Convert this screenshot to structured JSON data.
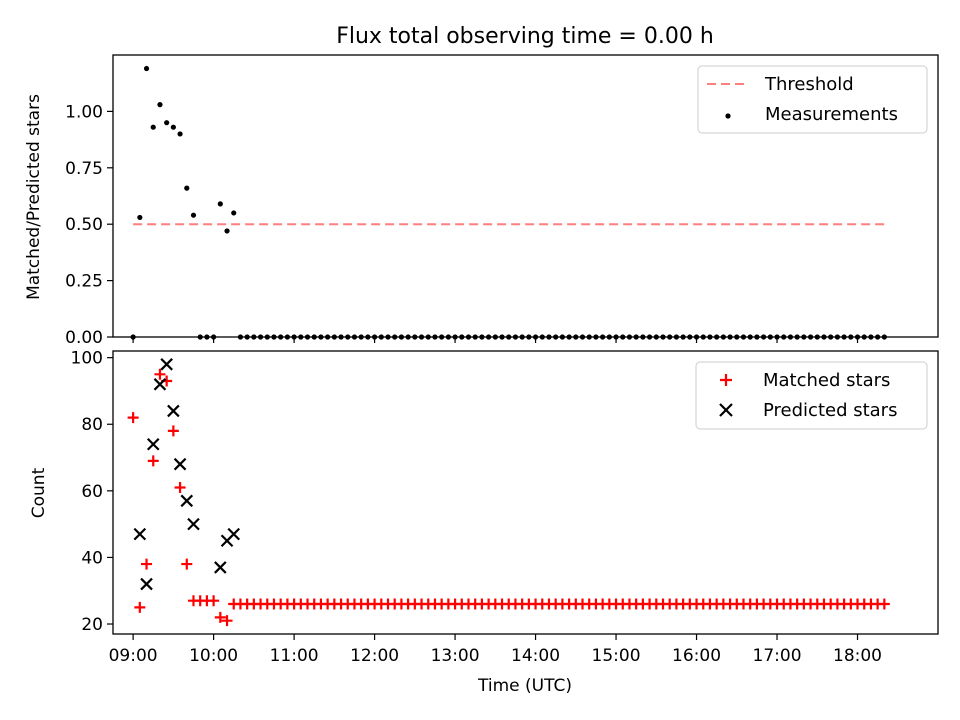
{
  "figure_title": "Flux total observing time = 0.00 h",
  "colors": {
    "threshold": "#ff7f7f",
    "measurements": "#000000",
    "matched": "#ff0000",
    "predicted": "#000000"
  },
  "chart_data": [
    {
      "type": "scatter",
      "title": "Flux total observing time = 0.00 h",
      "xlabel": "",
      "ylabel": "Matched/Predicted stars",
      "ylim": [
        0,
        1.25
      ],
      "yticks": [
        "0.00",
        "0.25",
        "0.50",
        "0.75",
        "1.00"
      ],
      "xlim": [
        "08:45",
        "19:00"
      ],
      "legend": {
        "placement": "top-right",
        "entries": [
          "Threshold",
          "Measurements"
        ]
      },
      "threshold": {
        "name": "Threshold",
        "y": 0.5,
        "x_start": "09:00",
        "x_end": "18:20"
      },
      "series": [
        {
          "name": "Measurements",
          "points": [
            [
              "09:00",
              0.0
            ],
            [
              "09:05",
              0.53
            ],
            [
              "09:10",
              1.19
            ],
            [
              "09:15",
              0.93
            ],
            [
              "09:20",
              1.03
            ],
            [
              "09:25",
              0.95
            ],
            [
              "09:30",
              0.93
            ],
            [
              "09:35",
              0.9
            ],
            [
              "09:40",
              0.66
            ],
            [
              "09:45",
              0.54
            ],
            [
              "09:50",
              0.0
            ],
            [
              "09:55",
              0.0
            ],
            [
              "10:00",
              0.0
            ],
            [
              "10:05",
              0.59
            ],
            [
              "10:10",
              0.47
            ],
            [
              "10:15",
              0.55
            ]
          ],
          "zero_run": {
            "start": "10:20",
            "end": "18:20",
            "step_minutes": 5,
            "value": 0.0
          }
        }
      ]
    },
    {
      "type": "scatter",
      "title": "",
      "xlabel": "Time (UTC)",
      "ylabel": "Count",
      "ylim": [
        17,
        102
      ],
      "yticks": [
        "20",
        "40",
        "60",
        "80",
        "100"
      ],
      "xlim": [
        "08:45",
        "19:00"
      ],
      "xticks": [
        "09:00",
        "10:00",
        "11:00",
        "12:00",
        "13:00",
        "14:00",
        "15:00",
        "16:00",
        "17:00",
        "18:00"
      ],
      "legend": {
        "placement": "top-right",
        "entries": [
          "Matched stars",
          "Predicted stars"
        ]
      },
      "series": [
        {
          "name": "Matched stars",
          "marker": "plus",
          "points": [
            [
              "09:00",
              82
            ],
            [
              "09:05",
              25
            ],
            [
              "09:10",
              38
            ],
            [
              "09:15",
              69
            ],
            [
              "09:20",
              95
            ],
            [
              "09:25",
              93
            ],
            [
              "09:30",
              78
            ],
            [
              "09:35",
              61
            ],
            [
              "09:40",
              38
            ],
            [
              "09:45",
              27
            ],
            [
              "09:50",
              27
            ],
            [
              "09:55",
              27
            ],
            [
              "10:00",
              27
            ],
            [
              "10:05",
              22
            ],
            [
              "10:10",
              21
            ]
          ],
          "constant_run": {
            "start": "10:15",
            "end": "18:20",
            "step_minutes": 5,
            "value": 26
          }
        },
        {
          "name": "Predicted stars",
          "marker": "x",
          "points": [
            [
              "09:05",
              47
            ],
            [
              "09:10",
              32
            ],
            [
              "09:15",
              74
            ],
            [
              "09:20",
              92
            ],
            [
              "09:25",
              98
            ],
            [
              "09:30",
              84
            ],
            [
              "09:35",
              68
            ],
            [
              "09:40",
              57
            ],
            [
              "09:45",
              50
            ],
            [
              "10:05",
              37
            ],
            [
              "10:10",
              45
            ],
            [
              "10:15",
              47
            ]
          ]
        }
      ]
    }
  ]
}
